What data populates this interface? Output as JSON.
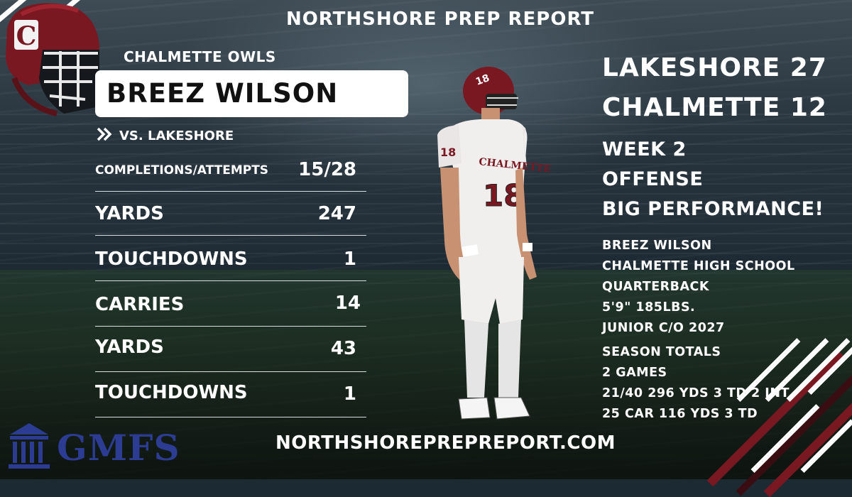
{
  "header": {
    "title": "NORTHSHORE PREP REPORT"
  },
  "team": {
    "name": "CHALMETTE OWLS",
    "helmet_letter": "C"
  },
  "player": {
    "name": "BREEZ WILSON",
    "jersey_number": "18",
    "jersey_text": "CHALMETTE"
  },
  "matchup": {
    "label": "VS. LAKESHORE"
  },
  "stats": [
    {
      "label": "COMPLETIONS/ATTEMPTS",
      "value": "15/28"
    },
    {
      "label": "YARDS",
      "value": "247"
    },
    {
      "label": "TOUCHDOWNS",
      "value": "1"
    },
    {
      "label": "CARRIES",
      "value": "14"
    },
    {
      "label": "YARDS",
      "value": "43"
    },
    {
      "label": "TOUCHDOWNS",
      "value": "1"
    }
  ],
  "scoreboard": {
    "line1": "LAKESHORE 27",
    "line2": "CHALMETTE 12"
  },
  "headline": {
    "line1": "WEEK 2",
    "line2": "OFFENSE",
    "line3": "BIG PERFORMANCE!"
  },
  "profile": {
    "name": "BREEZ WILSON",
    "school": "CHALMETTE HIGH SCHOOL",
    "position": "QUARTERBACK",
    "size": "5'9\" 185LBS.",
    "class": "JUNIOR C/O 2027"
  },
  "season": {
    "title": "SEASON TOTALS",
    "games": "2 GAMES",
    "passing": "21/40 296 YDS 3 TD 2 INT",
    "rushing": "25 CAR 116 YDS 3 TD"
  },
  "sponsor": {
    "name": "GMFS"
  },
  "footer": {
    "website": "NORTHSHOREPREPREPORT.COM"
  },
  "colors": {
    "maroon": "#7a1822",
    "navy": "#2c3c92",
    "white": "#ffffff"
  }
}
